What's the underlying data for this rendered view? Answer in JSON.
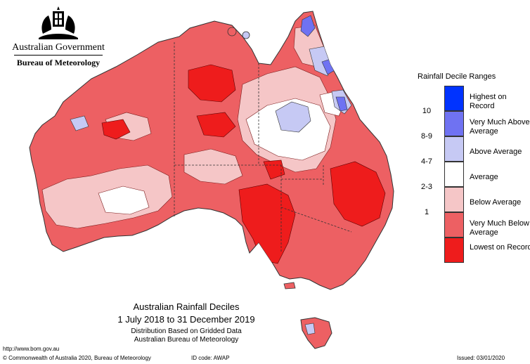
{
  "branding": {
    "government": "Australian Government",
    "bureau": "Bureau of Meteorology"
  },
  "legend": {
    "title": "Rainfall Decile Ranges",
    "items": [
      {
        "range": "",
        "label": "Highest on Record",
        "color": "#0033ff"
      },
      {
        "range": "10",
        "label": "Very Much Above Average",
        "color": "#6f72f2"
      },
      {
        "range": "8-9",
        "label": "Above Average",
        "color": "#c6c9f4"
      },
      {
        "range": "4-7",
        "label": "Average",
        "color": "#ffffff"
      },
      {
        "range": "2-3",
        "label": "Below Average",
        "color": "#f5c6c7"
      },
      {
        "range": "1",
        "label": "Very Much Below Average",
        "color": "#ed6063"
      },
      {
        "range": "",
        "label": "Lowest on Record",
        "color": "#ee1c1c"
      }
    ]
  },
  "caption": {
    "title": "Australian Rainfall Deciles",
    "period": "1 July 2018 to 31 December 2019",
    "note": "Distribution Based on Gridded Data",
    "source": "Australian Bureau of Meteorology"
  },
  "footer": {
    "url": "http://www.bom.gov.au",
    "copyright": "© Commonwealth of Australia 2020, Bureau of Meteorology",
    "id_code": "ID code: AWAP",
    "issued": "Issued: 03/01/2020"
  }
}
